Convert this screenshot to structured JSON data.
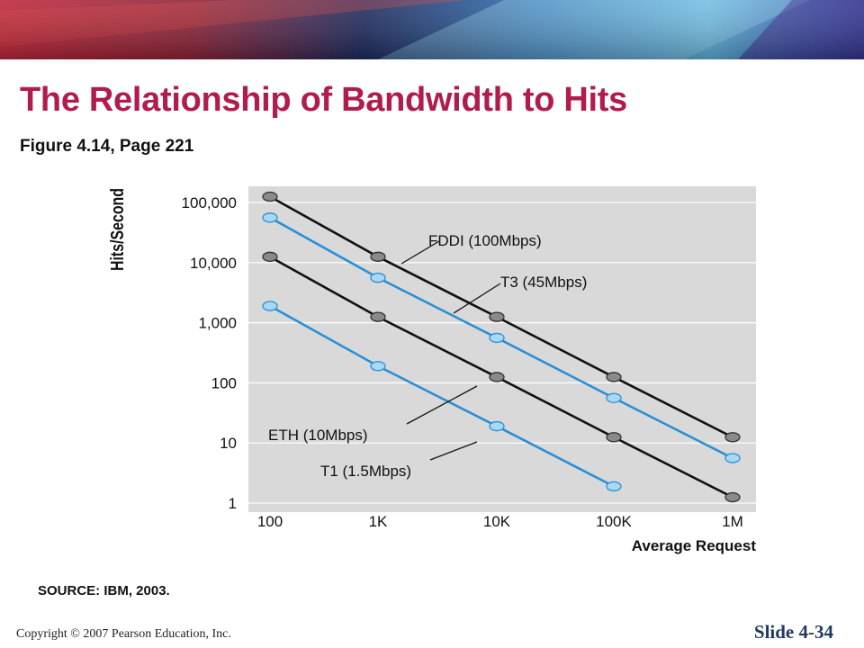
{
  "slide": {
    "title": "The Relationship of Bandwidth to Hits",
    "subtitle": "Figure 4.14, Page 221",
    "source": "SOURCE: IBM, 2003.",
    "copyright": "Copyright © 2007 Pearson Education, Inc.",
    "slide_number": "Slide 4-34"
  },
  "colors": {
    "title": "#b01c4e",
    "plot_background": "#d9d9d9",
    "black_series": "#111111",
    "blue_series": "#2a8fd6"
  },
  "chart_data": {
    "type": "line",
    "xlabel": "Average Request",
    "ylabel": "Hits/Second",
    "x_scale": "log",
    "y_scale": "log",
    "x_ticks": [
      "100",
      "1K",
      "10K",
      "100K",
      "1M"
    ],
    "y_ticks": [
      "100,000",
      "10,000",
      "1,000",
      "100",
      "10",
      "1"
    ],
    "xlim": [
      100,
      1000000
    ],
    "ylim": [
      1,
      100000
    ],
    "grid": "horizontal",
    "series": [
      {
        "name": "FDDI (100Mbps)",
        "color": "#111111",
        "x": [
          100,
          1000,
          10000,
          100000,
          1000000
        ],
        "y": [
          125000,
          12500,
          1250,
          125,
          12.5
        ]
      },
      {
        "name": "T3 (45Mbps)",
        "color": "#2a8fd6",
        "x": [
          100,
          1000,
          10000,
          100000,
          1000000
        ],
        "y": [
          56000,
          5600,
          560,
          56,
          5.6
        ]
      },
      {
        "name": "ETH (10Mbps)",
        "color": "#111111",
        "x": [
          100,
          1000,
          10000,
          100000,
          1000000
        ],
        "y": [
          12500,
          1250,
          125,
          12.5,
          1.25
        ]
      },
      {
        "name": "T1 (1.5Mbps)",
        "color": "#2a8fd6",
        "x": [
          100,
          1000,
          10000,
          100000
        ],
        "y": [
          1900,
          190,
          19,
          1.9
        ]
      }
    ]
  }
}
